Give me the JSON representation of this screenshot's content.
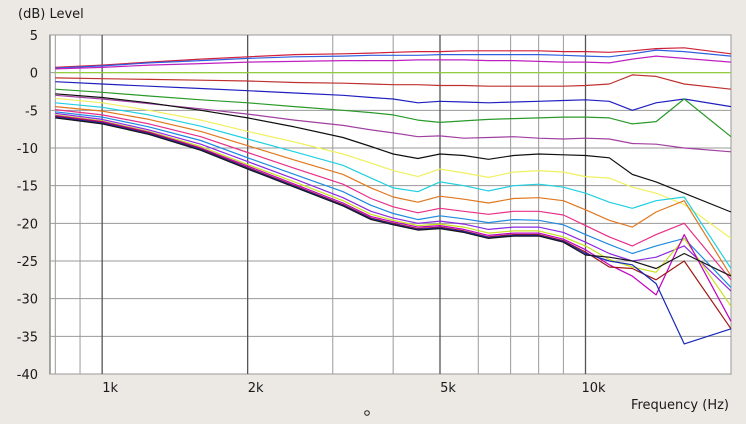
{
  "chart_data": {
    "type": "line",
    "ylabel": "(dB)  Level",
    "xlabel": "Frequency  (Hz)",
    "x_scale": "log",
    "xlim": [
      780,
      20000
    ],
    "ylim": [
      -40,
      5
    ],
    "grid": true,
    "legend": "none",
    "x_tick_labels": [
      {
        "value": 1000,
        "label": "1k"
      },
      {
        "value": 2000,
        "label": "2k"
      },
      {
        "value": 5000,
        "label": "5k"
      },
      {
        "value": 10000,
        "label": "10k"
      }
    ],
    "x_minor_ticks": [
      800,
      900,
      3000,
      4000,
      6000,
      7000,
      8000,
      9000,
      20000
    ],
    "y_ticks": [
      5,
      0,
      -5,
      -10,
      -15,
      -20,
      -25,
      -30,
      -35,
      -40
    ],
    "x": [
      800,
      1000,
      1250,
      1600,
      2000,
      2500,
      3150,
      3600,
      4000,
      4500,
      5000,
      5600,
      6300,
      7100,
      8000,
      9000,
      10000,
      11200,
      12500,
      14000,
      16000,
      20000
    ],
    "series": [
      {
        "color": "#d0203a",
        "values": [
          0.7,
          1.0,
          1.4,
          1.8,
          2.1,
          2.4,
          2.5,
          2.6,
          2.7,
          2.8,
          2.8,
          2.9,
          2.9,
          2.9,
          2.9,
          2.8,
          2.8,
          2.7,
          2.9,
          3.2,
          3.3,
          2.5
        ]
      },
      {
        "color": "#3060e0",
        "values": [
          0.6,
          0.9,
          1.3,
          1.6,
          1.9,
          2.1,
          2.2,
          2.3,
          2.3,
          2.3,
          2.4,
          2.4,
          2.4,
          2.4,
          2.4,
          2.3,
          2.2,
          2.1,
          2.5,
          3.0,
          2.8,
          2.2
        ]
      },
      {
        "color": "#c020c0",
        "values": [
          0.5,
          0.7,
          1.0,
          1.2,
          1.4,
          1.5,
          1.6,
          1.6,
          1.6,
          1.7,
          1.7,
          1.7,
          1.6,
          1.6,
          1.5,
          1.4,
          1.4,
          1.3,
          1.8,
          2.2,
          1.9,
          1.4
        ]
      },
      {
        "color": "#90d030",
        "values": [
          0.0,
          0.0,
          0.0,
          0.0,
          0.0,
          0.0,
          0.0,
          0.0,
          0.0,
          0.0,
          0.0,
          0.0,
          0.0,
          0.0,
          0.0,
          0.0,
          0.0,
          0.0,
          0.0,
          0.0,
          0.0,
          0.0
        ]
      },
      {
        "color": "#c03030",
        "values": [
          -0.7,
          -0.8,
          -0.9,
          -1.0,
          -1.1,
          -1.3,
          -1.4,
          -1.5,
          -1.6,
          -1.6,
          -1.7,
          -1.7,
          -1.8,
          -1.8,
          -1.8,
          -1.8,
          -1.7,
          -1.5,
          -0.3,
          -0.5,
          -1.5,
          -2.2
        ]
      },
      {
        "color": "#2020c0",
        "values": [
          -1.2,
          -1.5,
          -1.8,
          -2.1,
          -2.4,
          -2.7,
          -3.0,
          -3.3,
          -3.5,
          -4.0,
          -3.8,
          -3.9,
          -4.0,
          -3.9,
          -3.8,
          -3.7,
          -3.6,
          -3.8,
          -5.0,
          -4.0,
          -3.5,
          -4.5
        ]
      },
      {
        "color": "#2a9a2a",
        "values": [
          -2.2,
          -2.6,
          -3.1,
          -3.6,
          -4.0,
          -4.5,
          -5.0,
          -5.3,
          -5.6,
          -6.3,
          -6.6,
          -6.4,
          -6.2,
          -6.1,
          -6.0,
          -5.9,
          -5.9,
          -6.0,
          -6.8,
          -6.5,
          -3.5,
          -8.5
        ]
      },
      {
        "color": "#a040a0",
        "values": [
          -3.0,
          -3.5,
          -4.1,
          -4.8,
          -5.5,
          -6.3,
          -7.0,
          -7.6,
          -8.0,
          -8.5,
          -8.4,
          -8.7,
          -8.6,
          -8.5,
          -8.7,
          -8.8,
          -8.7,
          -8.8,
          -9.4,
          -9.5,
          -10.0,
          -10.5
        ]
      },
      {
        "color": "#101010",
        "values": [
          -2.8,
          -3.3,
          -4.0,
          -5.0,
          -6.0,
          -7.2,
          -8.6,
          -9.8,
          -10.8,
          -11.4,
          -10.8,
          -11.0,
          -11.5,
          -11.0,
          -10.8,
          -10.9,
          -11.0,
          -11.3,
          -13.5,
          -14.5,
          -16.0,
          -18.5
        ]
      },
      {
        "color": "#f0f060",
        "values": [
          -3.4,
          -4.0,
          -5.0,
          -6.3,
          -7.8,
          -9.2,
          -10.8,
          -12.0,
          -13.0,
          -13.8,
          -12.8,
          -13.3,
          -13.9,
          -13.2,
          -13.0,
          -13.2,
          -13.8,
          -14.0,
          -15.2,
          -16.0,
          -17.5,
          -22.0
        ]
      },
      {
        "color": "#20d0e0",
        "values": [
          -4.0,
          -4.6,
          -5.6,
          -7.1,
          -8.8,
          -10.5,
          -12.3,
          -14.0,
          -15.3,
          -15.8,
          -14.5,
          -15.0,
          -15.7,
          -15.0,
          -14.8,
          -15.2,
          -16.0,
          -17.2,
          -18.0,
          -17.0,
          -16.5,
          -26.0
        ]
      },
      {
        "color": "#e07820",
        "values": [
          -4.5,
          -5.1,
          -6.2,
          -7.8,
          -9.7,
          -11.6,
          -13.5,
          -15.3,
          -16.5,
          -17.2,
          -16.4,
          -16.8,
          -17.3,
          -16.7,
          -16.6,
          -17.0,
          -18.2,
          -19.6,
          -20.5,
          -18.5,
          -17.0,
          -27.0
        ]
      },
      {
        "color": "#e83088",
        "values": [
          -4.9,
          -5.6,
          -6.8,
          -8.5,
          -10.6,
          -12.7,
          -14.8,
          -16.7,
          -17.8,
          -18.6,
          -18.0,
          -18.4,
          -18.8,
          -18.4,
          -18.4,
          -18.9,
          -20.3,
          -21.8,
          -23.0,
          -21.5,
          -20.0,
          -27.5
        ]
      },
      {
        "color": "#208ae0",
        "values": [
          -5.2,
          -5.9,
          -7.2,
          -9.0,
          -11.3,
          -13.5,
          -15.8,
          -17.6,
          -18.7,
          -19.5,
          -19.0,
          -19.4,
          -19.9,
          -19.5,
          -19.6,
          -20.2,
          -21.5,
          -22.8,
          -24.0,
          -23.0,
          -22.0,
          -28.5
        ]
      },
      {
        "color": "#8a2ae0",
        "values": [
          -5.4,
          -6.2,
          -7.6,
          -9.5,
          -11.8,
          -14.1,
          -16.6,
          -18.4,
          -19.3,
          -20.0,
          -19.7,
          -20.1,
          -20.8,
          -20.5,
          -20.5,
          -21.2,
          -22.5,
          -24.0,
          -25.0,
          -24.5,
          -23.0,
          -29.0
        ]
      },
      {
        "color": "#c8e020",
        "values": [
          -5.6,
          -6.4,
          -7.8,
          -9.8,
          -12.2,
          -14.5,
          -17.0,
          -18.8,
          -19.6,
          -20.3,
          -20.1,
          -20.5,
          -21.3,
          -21.0,
          -21.0,
          -21.8,
          -23.0,
          -24.8,
          -25.8,
          -26.5,
          -22.0,
          -31.0
        ]
      },
      {
        "color": "#c000c0",
        "values": [
          -5.7,
          -6.5,
          -7.9,
          -10.0,
          -12.4,
          -14.8,
          -17.3,
          -19.1,
          -19.8,
          -20.5,
          -20.3,
          -20.8,
          -21.6,
          -21.3,
          -21.3,
          -22.1,
          -23.5,
          -25.5,
          -27.0,
          -29.5,
          -21.5,
          -33.0
        ]
      },
      {
        "color": "#a01818",
        "values": [
          -5.8,
          -6.6,
          -8.0,
          -10.1,
          -12.6,
          -15.0,
          -17.5,
          -19.3,
          -20.0,
          -20.7,
          -20.5,
          -21.0,
          -21.8,
          -21.5,
          -21.5,
          -22.3,
          -23.8,
          -25.8,
          -26.0,
          -27.5,
          -25.0,
          -34.0
        ]
      },
      {
        "color": "#1828b8",
        "values": [
          -5.9,
          -6.7,
          -8.1,
          -10.2,
          -12.7,
          -15.1,
          -17.6,
          -19.4,
          -20.1,
          -20.8,
          -20.6,
          -21.1,
          -21.9,
          -21.6,
          -21.6,
          -22.4,
          -24.0,
          -25.0,
          -25.5,
          -28.0,
          -36.0,
          -34.0
        ]
      },
      {
        "color": "#181818",
        "values": [
          -6.0,
          -6.8,
          -8.2,
          -10.3,
          -12.8,
          -15.2,
          -17.7,
          -19.5,
          -20.2,
          -20.9,
          -20.7,
          -21.2,
          -22.0,
          -21.7,
          -21.7,
          -22.5,
          -24.2,
          -24.5,
          -25.0,
          -26.0,
          -24.0,
          -27.0
        ]
      }
    ]
  }
}
